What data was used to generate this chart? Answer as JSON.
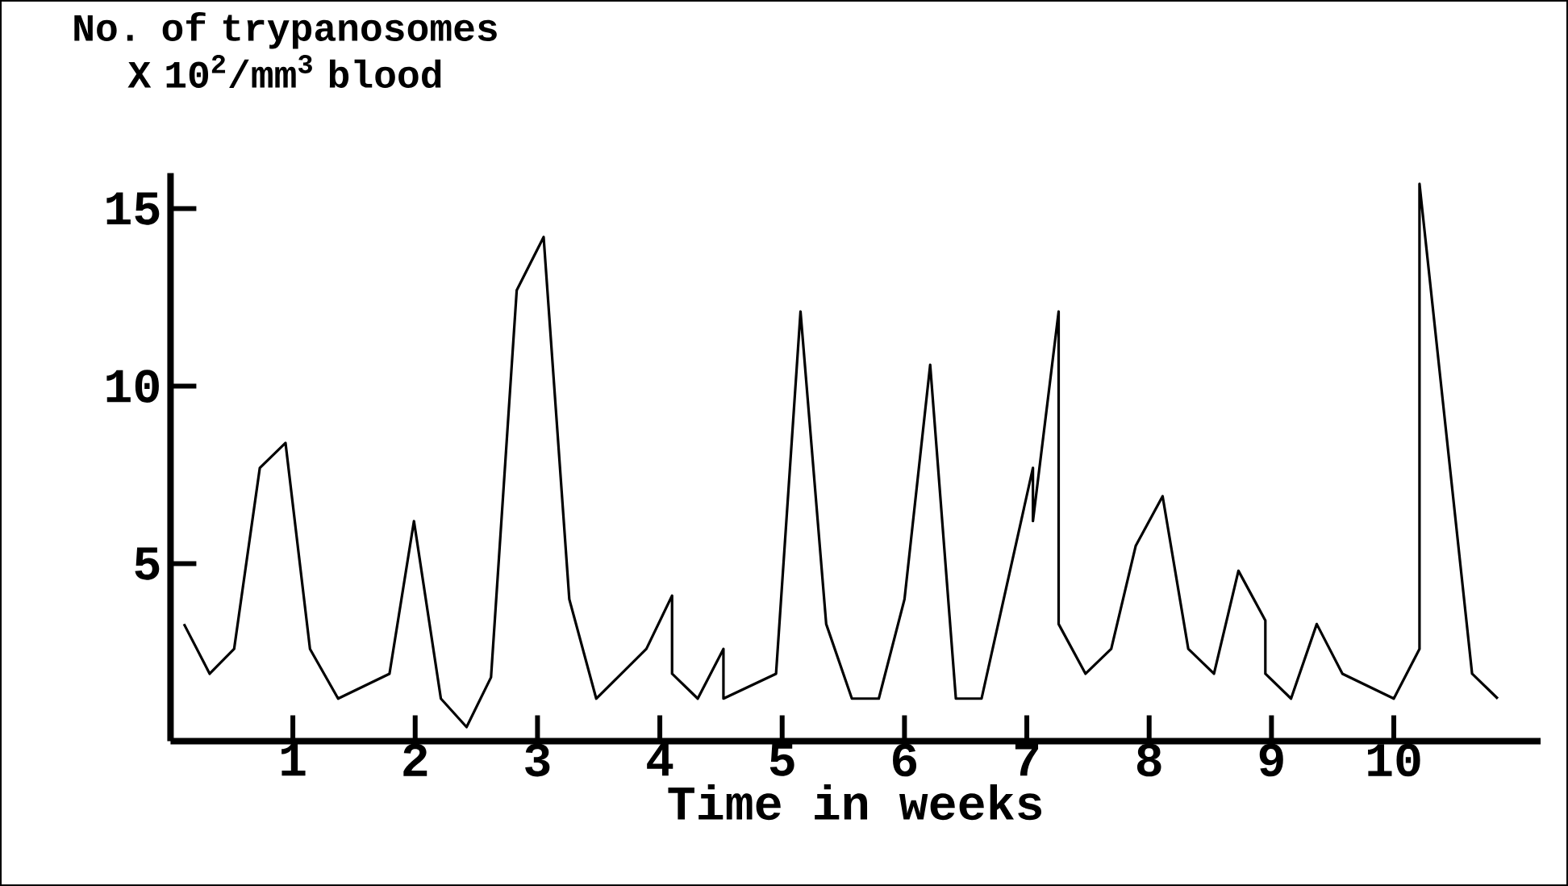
{
  "chart_data": {
    "type": "line",
    "ylabel": "No. of trypanosomes X 10$^{2}$/mm$^{3}$ blood",
    "xlabel": "Time in weeks",
    "x": [
      0.11,
      0.32,
      0.52,
      0.73,
      0.94,
      1.14,
      1.37,
      1.79,
      1.99,
      2.21,
      2.42,
      2.62,
      2.83,
      3.05,
      3.26,
      3.48,
      3.89,
      4.1,
      4.1,
      4.31,
      4.52,
      4.52,
      4.95,
      5.15,
      5.36,
      5.57,
      5.79,
      6.0,
      6.21,
      6.42,
      6.63,
      7.05,
      7.05,
      7.26,
      7.26,
      7.48,
      7.69,
      7.89,
      8.11,
      8.32,
      8.53,
      8.73,
      8.95,
      8.95,
      9.16,
      9.37,
      9.58,
      10.0,
      10.21,
      10.21,
      10.64,
      10.85
    ],
    "values": [
      3.3,
      1.9,
      2.6,
      7.7,
      8.4,
      2.6,
      1.2,
      1.9,
      6.2,
      1.2,
      0.4,
      1.8,
      12.7,
      14.2,
      4.0,
      1.2,
      2.6,
      4.1,
      1.9,
      1.2,
      2.6,
      1.2,
      1.9,
      12.1,
      3.3,
      1.2,
      1.2,
      4.0,
      10.6,
      1.2,
      1.2,
      7.7,
      6.2,
      12.1,
      3.3,
      1.9,
      2.6,
      5.5,
      6.9,
      2.6,
      1.9,
      4.8,
      3.4,
      1.9,
      1.2,
      3.3,
      1.9,
      1.2,
      2.6,
      15.7,
      1.9,
      1.2
    ],
    "color": "#000000",
    "xlim": [
      0,
      11.2
    ],
    "ylim": [
      0,
      16
    ],
    "xticks": [
      1,
      2,
      3,
      4,
      5,
      6,
      7,
      8,
      9,
      10
    ],
    "yticks": [
      5,
      10,
      15
    ]
  }
}
